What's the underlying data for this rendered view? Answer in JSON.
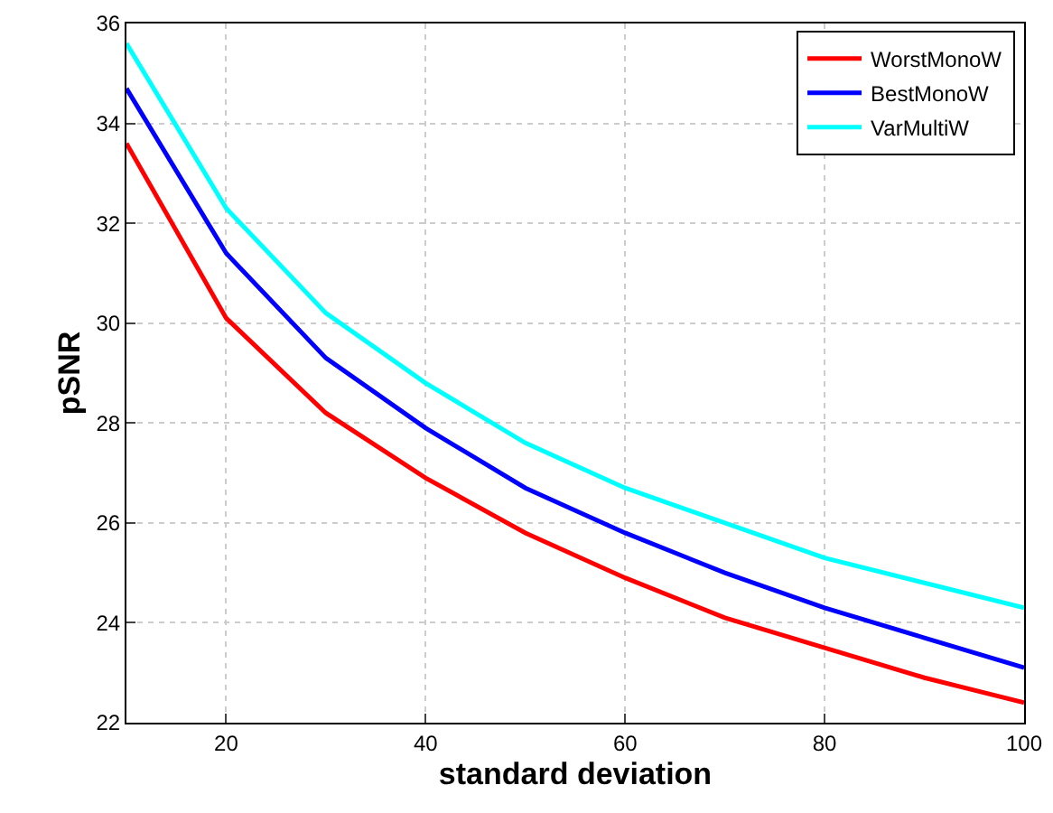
{
  "chart_data": {
    "type": "line",
    "xlabel": "standard deviation",
    "ylabel": "pSNR",
    "x": [
      10,
      20,
      30,
      40,
      50,
      60,
      70,
      80,
      90,
      100
    ],
    "series": [
      {
        "name": "WorstMonoW",
        "color": "#ff0000",
        "values": [
          33.6,
          30.1,
          28.2,
          26.9,
          25.8,
          24.9,
          24.1,
          23.5,
          22.9,
          22.4
        ]
      },
      {
        "name": "BestMonoW",
        "color": "#0000ff",
        "values": [
          34.7,
          31.4,
          29.3,
          27.9,
          26.7,
          25.8,
          25.0,
          24.3,
          23.7,
          23.1
        ]
      },
      {
        "name": "VarMultiW",
        "color": "#00ffff",
        "values": [
          35.6,
          32.3,
          30.2,
          28.8,
          27.6,
          26.7,
          26.0,
          25.3,
          24.8,
          24.3
        ]
      }
    ],
    "xlim": [
      10,
      100
    ],
    "xticks": [
      20,
      40,
      60,
      80,
      100
    ],
    "ylim": [
      22,
      36
    ],
    "yticks": [
      22,
      24,
      26,
      28,
      30,
      32,
      34,
      36
    ],
    "grid": true,
    "legend": "top right",
    "line_style": "solid",
    "marker": "none"
  }
}
